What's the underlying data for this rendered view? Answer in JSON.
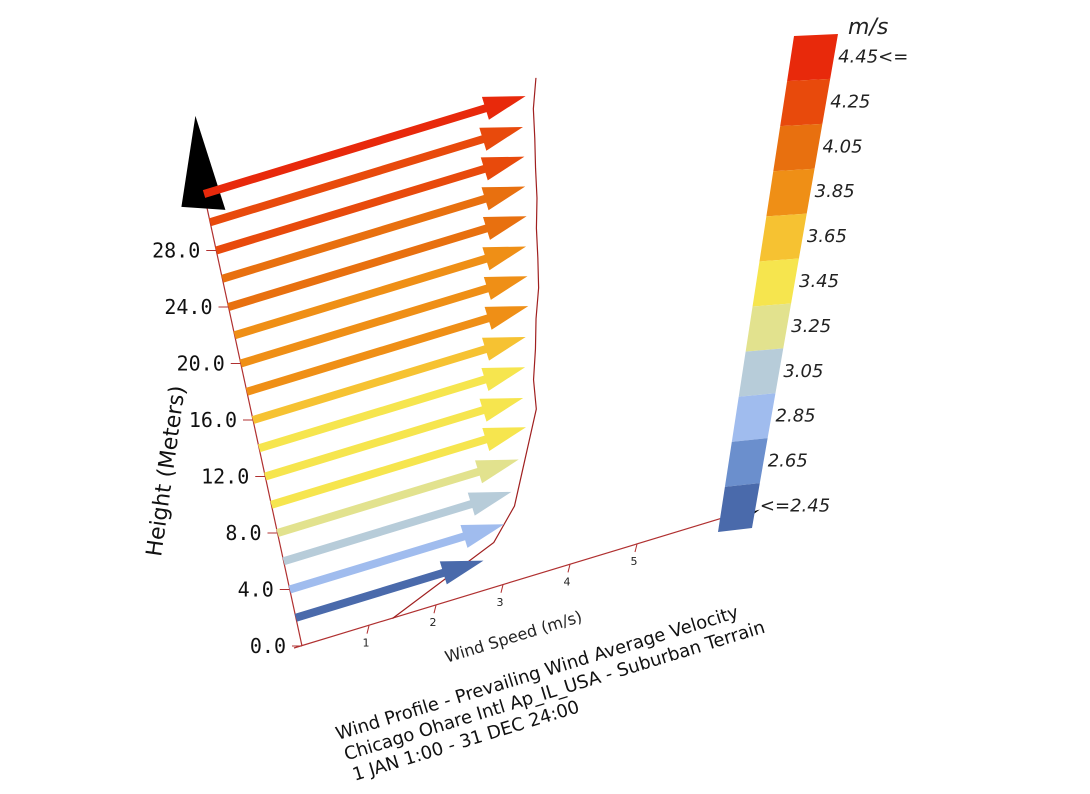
{
  "chart_data": {
    "type": "quiver",
    "title": [
      "Wind Profile  - Prevailing Wind Average Velocity",
      "Chicago Ohare Intl Ap_IL_USA - Suburban Terrain",
      "1 JAN 1:00 - 31 DEC 24:00"
    ],
    "xlabel": "Wind Speed (m/s)",
    "ylabel": "Height (Meters)",
    "x_ticks": [
      "1",
      "2",
      "3",
      "4",
      "5"
    ],
    "y_ticks": [
      "0.0",
      "4.0",
      "8.0",
      "12.0",
      "16.0",
      "20.0",
      "24.0",
      "28.0"
    ],
    "xlim": [
      0,
      5
    ],
    "ylim": [
      0,
      32
    ],
    "heights": [
      2,
      4,
      6,
      8,
      10,
      12,
      14,
      16,
      18,
      20,
      22,
      24,
      26,
      28,
      30,
      32
    ],
    "speeds": [
      2.45,
      2.85,
      3.05,
      3.25,
      3.45,
      3.5,
      3.62,
      3.72,
      3.85,
      3.93,
      4.0,
      4.1,
      4.17,
      4.25,
      4.32,
      4.45
    ],
    "legend": {
      "unit": "m/s",
      "labels": [
        "4.45<=",
        "4.25",
        "4.05",
        "3.85",
        "3.65",
        "3.45",
        "3.25",
        "3.05",
        "2.85",
        "2.65",
        "<=2.45"
      ],
      "colors": [
        "#e8290b",
        "#e84a0c",
        "#e8700f",
        "#ef8f16",
        "#f6c232",
        "#f6e54e",
        "#e2e28e",
        "#b7ccd9",
        "#a0bcee",
        "#6b8fcd",
        "#4a6aab"
      ],
      "thresholds": [
        4.45,
        4.25,
        4.05,
        3.85,
        3.65,
        3.45,
        3.25,
        3.05,
        2.85,
        2.65,
        2.45
      ]
    }
  }
}
